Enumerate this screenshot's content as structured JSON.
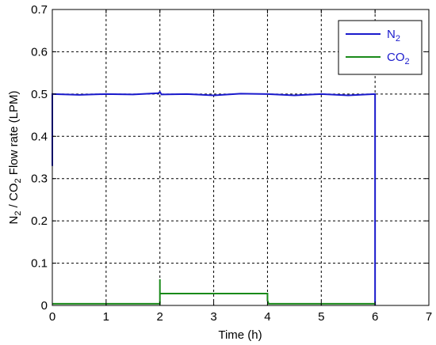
{
  "chart_data": {
    "type": "line",
    "xlabel": "Time (h)",
    "ylabel": {
      "parts": [
        "N",
        "2",
        " / CO",
        "2",
        " Flow rate (LPM)"
      ]
    },
    "xlim": [
      0,
      7
    ],
    "ylim": [
      0,
      0.7
    ],
    "xticks": [
      "0",
      "1",
      "2",
      "3",
      "4",
      "5",
      "6",
      "7"
    ],
    "yticks": [
      "0",
      "0.1",
      "0.2",
      "0.3",
      "0.4",
      "0.5",
      "0.6",
      "0.7"
    ],
    "grid": true,
    "legend_position": "top-right",
    "series": [
      {
        "name": "N2",
        "label_main": "N",
        "label_sub": "2",
        "color": "#1a1acc",
        "x": [
          0,
          0,
          0.02,
          0.5,
          1.0,
          1.5,
          1.97,
          2.0,
          2.03,
          2.5,
          3.0,
          3.5,
          4.0,
          4.5,
          5.0,
          5.5,
          5.99,
          6.0,
          6.0
        ],
        "y": [
          0.33,
          0.5,
          0.5,
          0.498,
          0.5,
          0.499,
          0.502,
          0.505,
          0.499,
          0.5,
          0.497,
          0.501,
          0.5,
          0.497,
          0.5,
          0.497,
          0.5,
          0.5,
          0
        ]
      },
      {
        "name": "CO2",
        "label_main": "CO",
        "label_sub": "2",
        "color": "#1a8a1a",
        "x": [
          0,
          2.0,
          2.0,
          2.0,
          2.02,
          3.5,
          3.99,
          4.0,
          4.0,
          4.02,
          6.0
        ],
        "y": [
          0.004,
          0.004,
          0.062,
          0.028,
          0.028,
          0.028,
          0.028,
          0.028,
          0.012,
          0.004,
          0.004
        ]
      }
    ]
  }
}
